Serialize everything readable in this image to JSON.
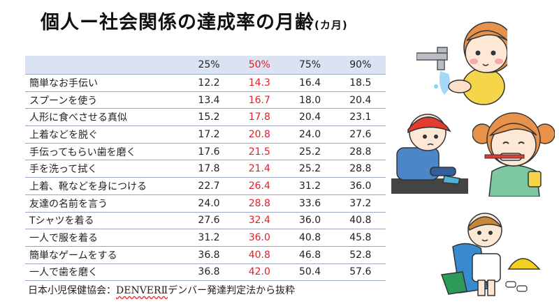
{
  "title": {
    "main": "個人ー社会関係の達成率の月齢",
    "unit": "(カ月)"
  },
  "table": {
    "headers": [
      "",
      "25%",
      "50%",
      "75%",
      "90%"
    ],
    "highlight_column_color": "#e0202a",
    "rows": [
      {
        "label": "簡単なお手伝い",
        "p25": "12.2",
        "p50": "14.3",
        "p75": "16.4",
        "p90": "18.5"
      },
      {
        "label": "スプーンを使う",
        "p25": "13.4",
        "p50": "16.7",
        "p75": "18.0",
        "p90": "20.4"
      },
      {
        "label": "人形に食べさせる真似",
        "p25": "15.2",
        "p50": "17.8",
        "p75": "20.4",
        "p90": "23.1"
      },
      {
        "label": "上着などを脱ぐ",
        "p25": "17.2",
        "p50": "20.8",
        "p75": "24.0",
        "p90": "27.6"
      },
      {
        "label": "手伝ってもらい歯を磨く",
        "p25": "17.6",
        "p50": "21.5",
        "p75": "25.2",
        "p90": "28.8"
      },
      {
        "label": "手を洗って拭く",
        "p25": "17.8",
        "p50": "21.4",
        "p75": "25.2",
        "p90": "28.8"
      },
      {
        "label": "上着、靴などを身につける",
        "p25": "22.7",
        "p50": "26.4",
        "p75": "31.2",
        "p90": "36.0"
      },
      {
        "label": "友達の名前を言う",
        "p25": "24.0",
        "p50": "28.8",
        "p75": "33.6",
        "p90": "37.2"
      },
      {
        "label": "Tシャツを着る",
        "p25": "27.6",
        "p50": "32.4",
        "p75": "36.0",
        "p90": "40.8"
      },
      {
        "label": "一人で服を着る",
        "p25": "31.2",
        "p50": "36.0",
        "p75": "40.8",
        "p90": "45.8"
      },
      {
        "label": "簡単なゲームをする",
        "p25": "36.8",
        "p50": "40.8",
        "p75": "46.8",
        "p90": "52.8"
      },
      {
        "label": "一人で歯を磨く",
        "p25": "36.8",
        "p50": "42.0",
        "p75": "50.4",
        "p90": "57.6"
      }
    ]
  },
  "source": {
    "prefix": "日本小児保健協会：",
    "underlined": "DENVERⅡ",
    "suffix": "デンバー発達判定法から抜粋"
  },
  "illustrations": [
    {
      "icon": "girl-washing-hands-icon"
    },
    {
      "icon": "boy-putting-on-shoes-icon"
    },
    {
      "icon": "girl-brushing-teeth-icon"
    },
    {
      "icon": "boy-dressing-icon"
    }
  ]
}
